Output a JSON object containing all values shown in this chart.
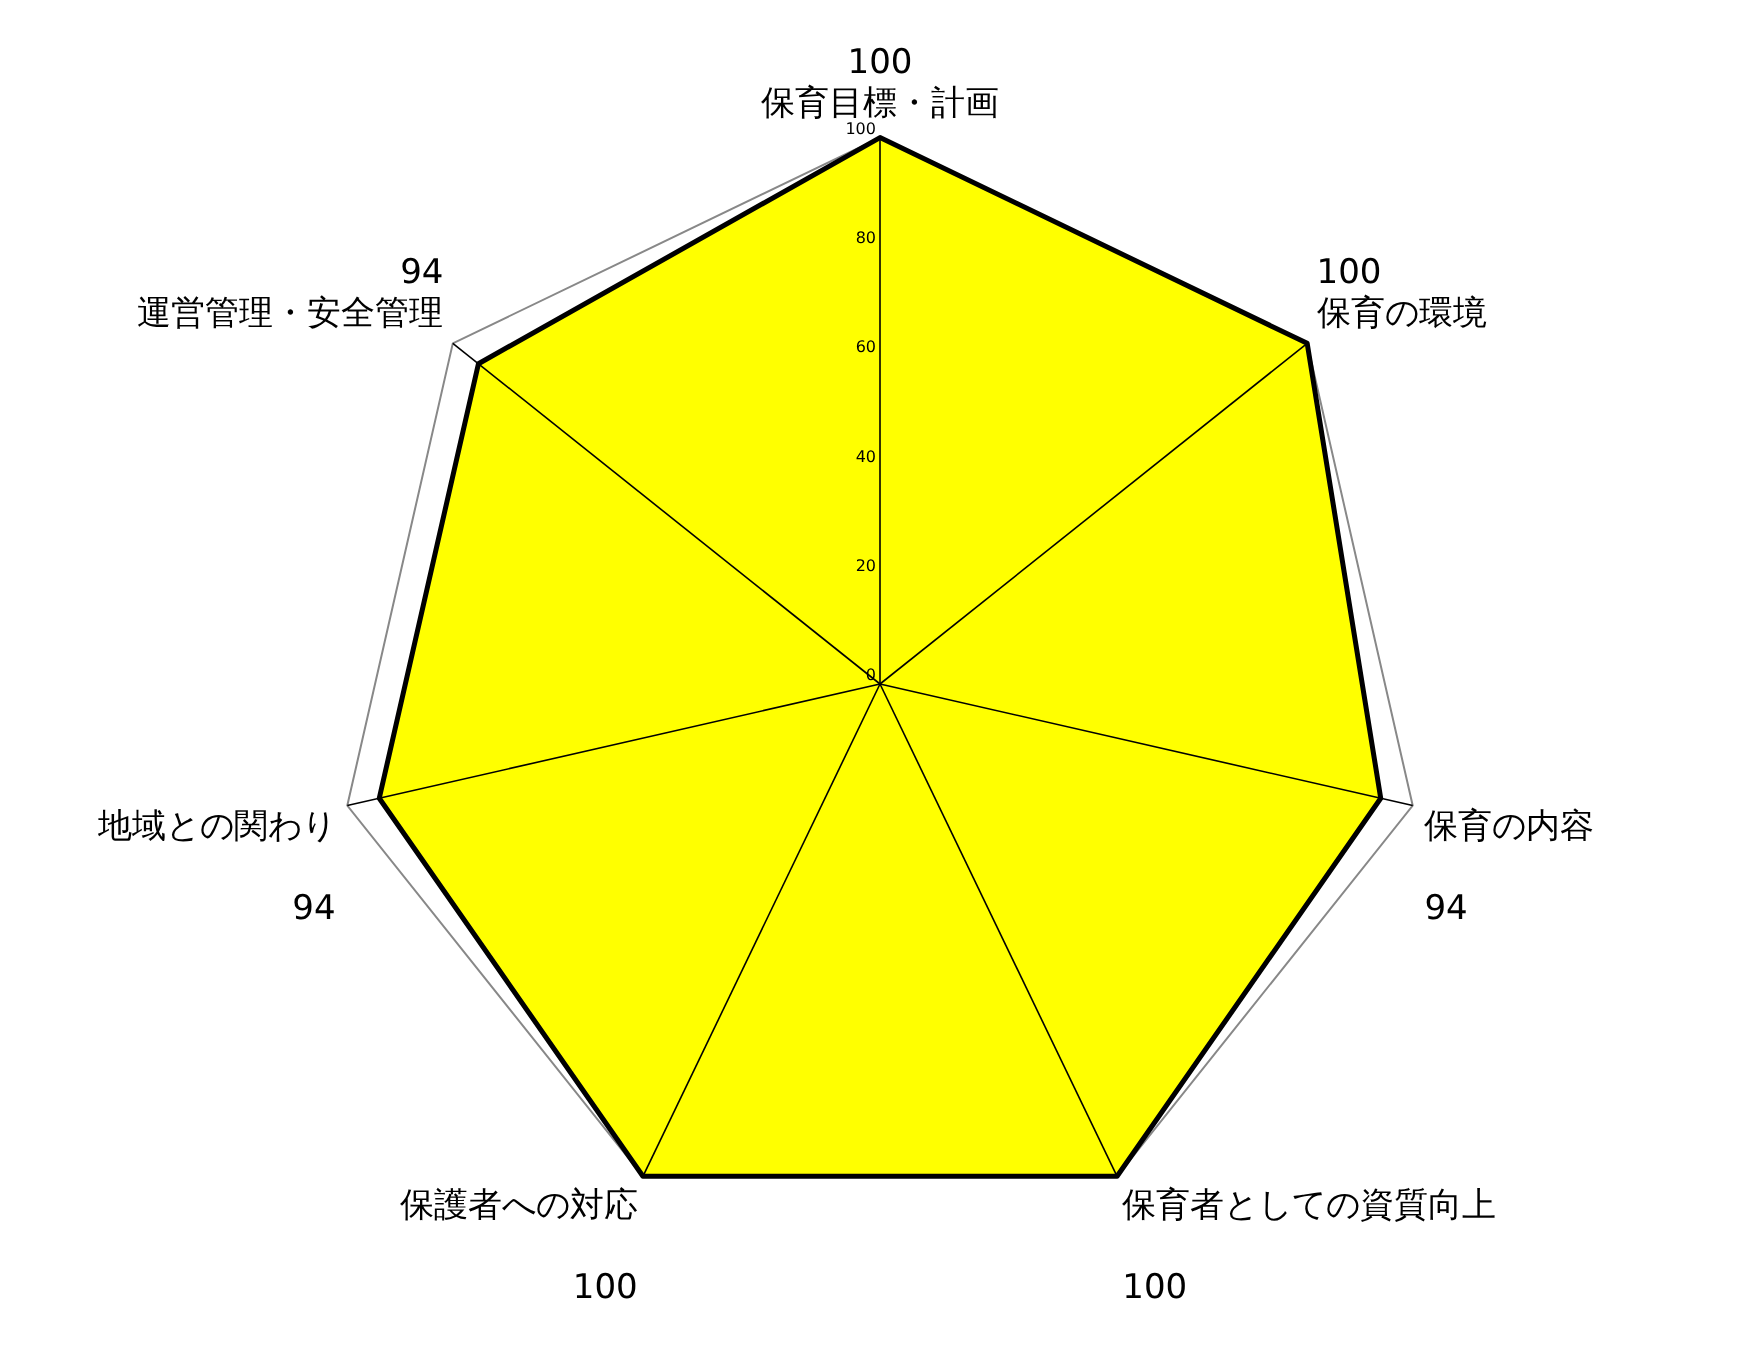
{
  "chart_data": {
    "type": "radar",
    "categories": [
      "保育目標・計画",
      "保育の環境",
      "保育の内容",
      "保育者としての資質向上",
      "保護者への対応",
      "地域との関わり",
      "運営管理・安全管理"
    ],
    "series": [
      {
        "color": "#ffff00",
        "values": [
          100,
          100,
          94,
          100,
          100,
          94,
          94
        ]
      }
    ],
    "ylim": [
      0,
      100
    ],
    "yticks": [
      0,
      20,
      40,
      60,
      80,
      100
    ],
    "grid": true,
    "data_labels": true,
    "legend": false,
    "marker": "none"
  }
}
